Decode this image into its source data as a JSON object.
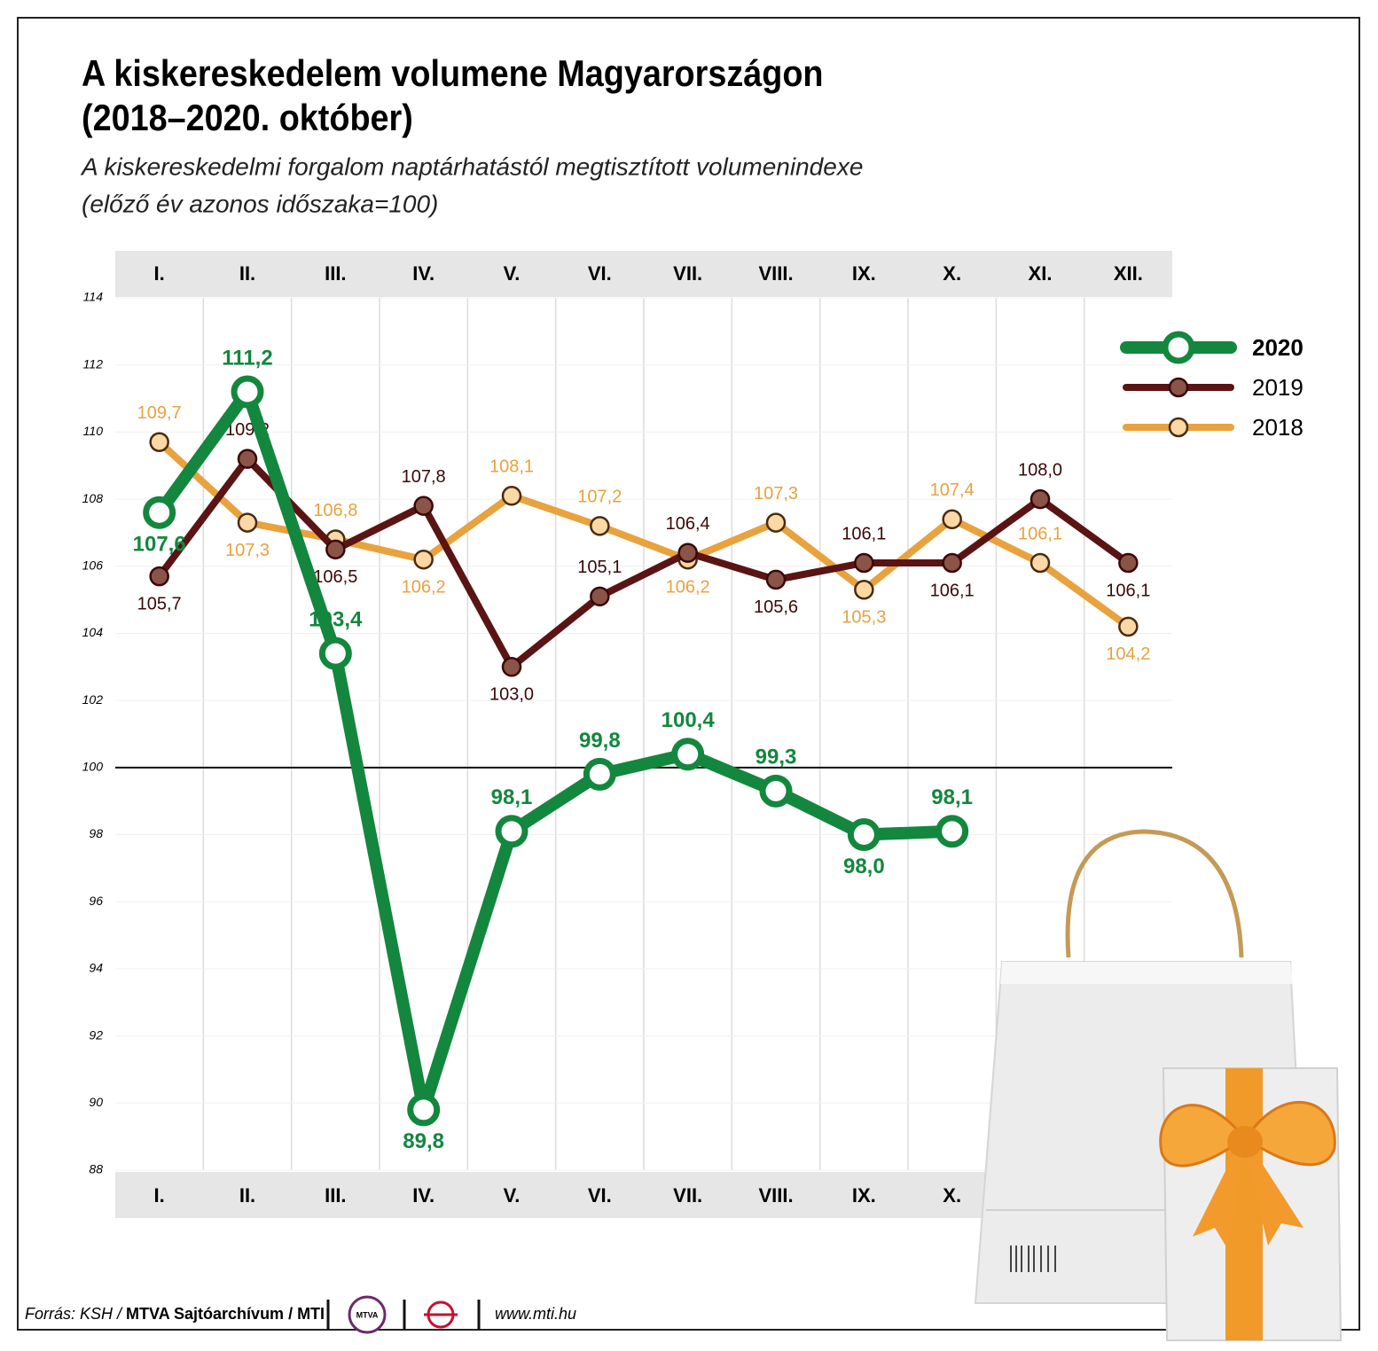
{
  "chart_data": {
    "type": "line",
    "title": [
      "A kiskereskedelem volumene Magyarországon",
      "(2018–2020. október)"
    ],
    "subtitle": [
      "A kiskereskedelmi forgalom naptárhatástól megtisztított volumenindexe",
      "(előző év azonos időszaka=100)"
    ],
    "categories": [
      "I.",
      "II.",
      "III.",
      "IV.",
      "V.",
      "VI.",
      "VII.",
      "VIII.",
      "IX.",
      "X.",
      "XI.",
      "XII."
    ],
    "series": [
      {
        "name": "2020",
        "color": "#13873e",
        "values": [
          107.6,
          111.2,
          103.4,
          89.8,
          98.1,
          99.8,
          100.4,
          99.3,
          98.0,
          98.1,
          null,
          null
        ],
        "value_labels": [
          "107,6",
          "111,2",
          "103,4",
          "89,8",
          "98,1",
          "99,8",
          "100,4",
          "99,3",
          "98,0",
          "98,1",
          null,
          null
        ]
      },
      {
        "name": "2019",
        "color": "#5a1414",
        "values": [
          105.7,
          109.2,
          106.5,
          107.8,
          103.0,
          105.1,
          106.4,
          105.6,
          106.1,
          106.1,
          108.0,
          106.1
        ],
        "value_labels": [
          "105,7",
          "109,2",
          "106,5",
          "107,8",
          "103,0",
          "105,1",
          "106,4",
          "105,6",
          "106,1",
          "106,1",
          "108,0",
          "106,1"
        ]
      },
      {
        "name": "2018",
        "color": "#e8a23e",
        "values": [
          109.7,
          107.3,
          106.8,
          106.2,
          108.1,
          107.2,
          106.2,
          107.3,
          105.3,
          107.4,
          106.1,
          104.2
        ],
        "value_labels": [
          "109,7",
          "107,3",
          "106,8",
          "106,2",
          "108,1",
          "107,2",
          "106,2",
          "107,3",
          "105,3",
          "107,4",
          "106,1",
          "104,2"
        ]
      }
    ],
    "ylim": [
      88,
      114
    ],
    "yticks": [
      88,
      90,
      92,
      94,
      96,
      98,
      100,
      102,
      104,
      106,
      108,
      110,
      112,
      114
    ],
    "reference_line": 100,
    "grid": true,
    "legend": "upper right",
    "source": {
      "plain": "Forrás: KSH / ",
      "bold": "MTVA Sajtóarchívum / MTI"
    },
    "logo": "MTVA",
    "url": "www.mti.hu"
  }
}
